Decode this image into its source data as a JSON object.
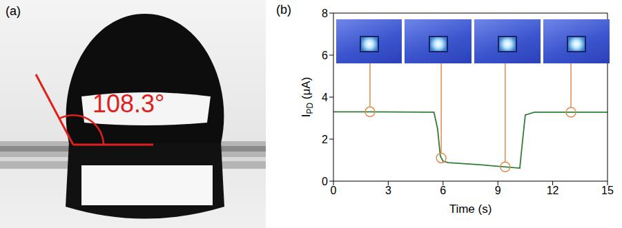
{
  "chart_data": {
    "type": "line",
    "panel_label": "(b)",
    "x_label": "Time (s)",
    "y_label": {
      "main": "I",
      "subscript": "PD",
      "unit": " (μA)"
    },
    "x": [
      0,
      2,
      5.5,
      5.7,
      5.85,
      6.0,
      6.3,
      8,
      10.2,
      10.3,
      10.5,
      11,
      13,
      15
    ],
    "values": [
      3.3,
      3.3,
      3.28,
      2.5,
      1.2,
      0.95,
      0.88,
      0.78,
      0.62,
      1.5,
      3.15,
      3.28,
      3.28,
      3.28
    ],
    "color": "#2e7d32",
    "xlim": [
      0,
      15
    ],
    "xticks": [
      0,
      3,
      6,
      9,
      12,
      15
    ],
    "ylim": [
      0,
      8
    ],
    "yticks": [
      0,
      2,
      4,
      6,
      8
    ],
    "highlights": {
      "x": [
        2,
        5.9,
        9.4,
        13
      ],
      "values": [
        3.3,
        1.1,
        0.68,
        3.28
      ],
      "color": "#e08a50"
    }
  },
  "panel_a": {
    "panel_label": "(a)",
    "contact_angle": "108.3°"
  }
}
